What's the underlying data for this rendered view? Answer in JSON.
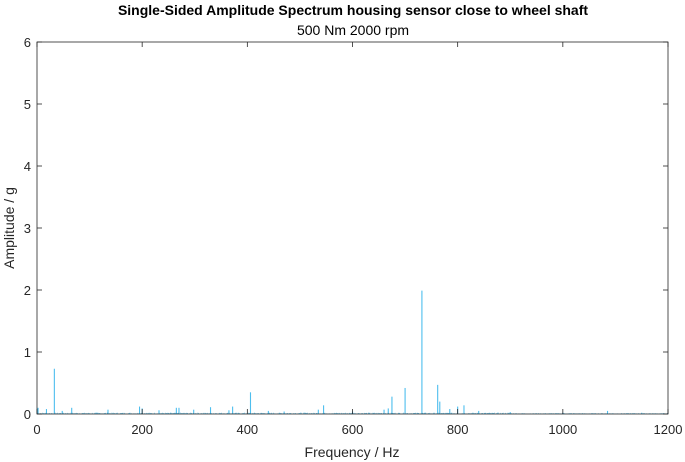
{
  "chart_data": {
    "type": "line",
    "title": "Single-Sided Amplitude Spectrum housing sensor close to wheel shaft",
    "subtitle": "500 Nm 2000 rpm",
    "xlabel": "Frequency / Hz",
    "ylabel": "Amplitude / g",
    "xlim": [
      0,
      1200
    ],
    "ylim": [
      0,
      6
    ],
    "xticks": [
      0,
      200,
      400,
      600,
      800,
      1000,
      1200
    ],
    "xtick_labels": [
      "0",
      "200",
      "400",
      "600",
      "800",
      "1000",
      "1200"
    ],
    "yticks": [
      0,
      1,
      2,
      3,
      4,
      5,
      6
    ],
    "ytick_labels": [
      "0",
      "1",
      "2",
      "3",
      "4",
      "5",
      "6"
    ],
    "grid": false,
    "line_color": "#4DBEEE",
    "series": [
      {
        "peaks": [
          {
            "x": 2,
            "y": 0.1
          },
          {
            "x": 18,
            "y": 0.08
          },
          {
            "x": 33,
            "y": 0.73
          },
          {
            "x": 48,
            "y": 0.05
          },
          {
            "x": 66,
            "y": 0.1
          },
          {
            "x": 135,
            "y": 0.07
          },
          {
            "x": 195,
            "y": 0.12
          },
          {
            "x": 200,
            "y": 0.09
          },
          {
            "x": 232,
            "y": 0.06
          },
          {
            "x": 265,
            "y": 0.1
          },
          {
            "x": 270,
            "y": 0.1
          },
          {
            "x": 298,
            "y": 0.07
          },
          {
            "x": 330,
            "y": 0.11
          },
          {
            "x": 365,
            "y": 0.06
          },
          {
            "x": 372,
            "y": 0.12
          },
          {
            "x": 406,
            "y": 0.35
          },
          {
            "x": 440,
            "y": 0.05
          },
          {
            "x": 470,
            "y": 0.04
          },
          {
            "x": 535,
            "y": 0.07
          },
          {
            "x": 545,
            "y": 0.14
          },
          {
            "x": 600,
            "y": 0.04
          },
          {
            "x": 660,
            "y": 0.07
          },
          {
            "x": 668,
            "y": 0.09
          },
          {
            "x": 675,
            "y": 0.28
          },
          {
            "x": 700,
            "y": 0.42
          },
          {
            "x": 732,
            "y": 1.99
          },
          {
            "x": 762,
            "y": 0.47
          },
          {
            "x": 766,
            "y": 0.2
          },
          {
            "x": 785,
            "y": 0.08
          },
          {
            "x": 800,
            "y": 0.12
          },
          {
            "x": 812,
            "y": 0.14
          },
          {
            "x": 840,
            "y": 0.05
          },
          {
            "x": 900,
            "y": 0.03
          },
          {
            "x": 1000,
            "y": 0.02
          },
          {
            "x": 1085,
            "y": 0.05
          },
          {
            "x": 1150,
            "y": 0.02
          }
        ]
      }
    ]
  }
}
